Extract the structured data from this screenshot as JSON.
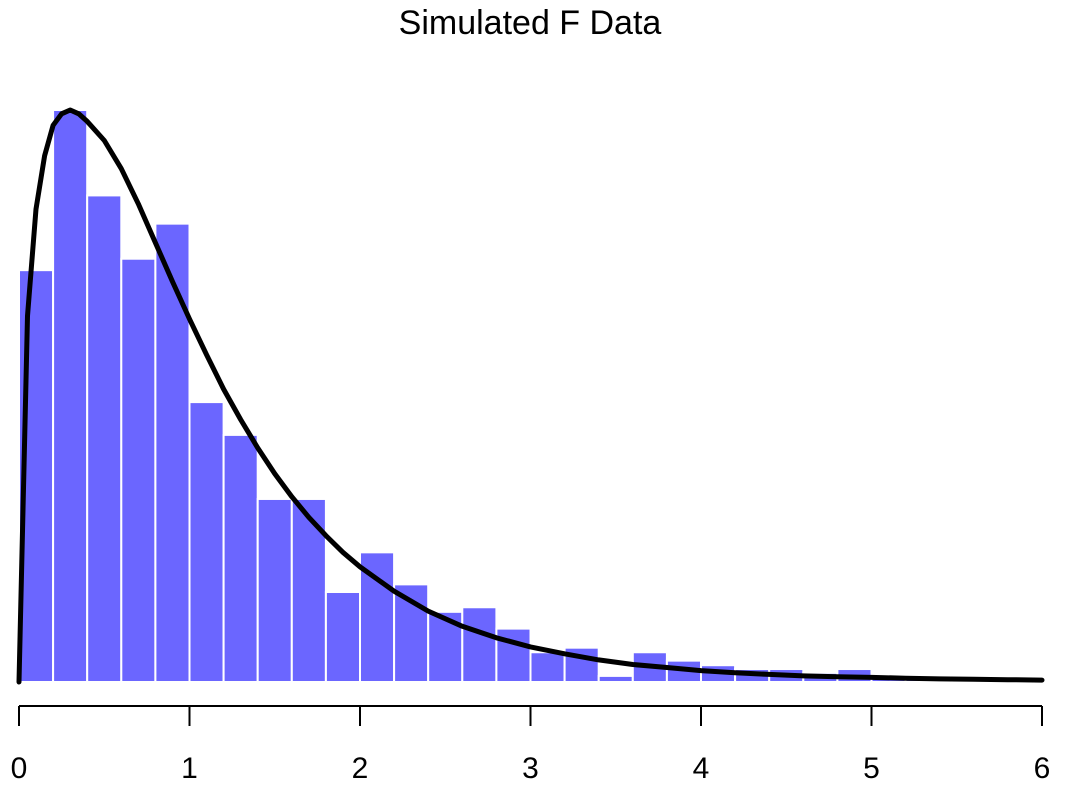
{
  "chart_data": {
    "type": "bar",
    "subtype": "histogram-with-density",
    "title": "Simulated F Data",
    "xlabel": "",
    "ylabel": "",
    "xlim": [
      0,
      6.2
    ],
    "ylim": [
      0,
      0.75
    ],
    "bin_width": 0.2,
    "x_ticks": [
      0,
      1,
      2,
      3,
      4,
      5,
      6
    ],
    "x_tick_labels": [
      "0",
      "1",
      "2",
      "3",
      "4",
      "5",
      "6"
    ],
    "y_axis_shown": false,
    "grid": false,
    "bins": [
      {
        "x0": 0.0,
        "x1": 0.2,
        "density": 0.54
      },
      {
        "x0": 0.2,
        "x1": 0.4,
        "density": 0.75
      },
      {
        "x0": 0.4,
        "x1": 0.6,
        "density": 0.638
      },
      {
        "x0": 0.6,
        "x1": 0.8,
        "density": 0.555
      },
      {
        "x0": 0.8,
        "x1": 1.0,
        "density": 0.601
      },
      {
        "x0": 1.0,
        "x1": 1.2,
        "density": 0.367
      },
      {
        "x0": 1.2,
        "x1": 1.4,
        "density": 0.324
      },
      {
        "x0": 1.4,
        "x1": 1.6,
        "density": 0.24
      },
      {
        "x0": 1.6,
        "x1": 1.8,
        "density": 0.24
      },
      {
        "x0": 1.8,
        "x1": 2.0,
        "density": 0.118
      },
      {
        "x0": 2.0,
        "x1": 2.2,
        "density": 0.17
      },
      {
        "x0": 2.2,
        "x1": 2.4,
        "density": 0.128
      },
      {
        "x0": 2.4,
        "x1": 2.6,
        "density": 0.092
      },
      {
        "x0": 2.6,
        "x1": 2.8,
        "density": 0.098
      },
      {
        "x0": 2.8,
        "x1": 3.0,
        "density": 0.07
      },
      {
        "x0": 3.0,
        "x1": 3.2,
        "density": 0.039
      },
      {
        "x0": 3.2,
        "x1": 3.4,
        "density": 0.045
      },
      {
        "x0": 3.4,
        "x1": 3.6,
        "density": 0.008
      },
      {
        "x0": 3.6,
        "x1": 3.8,
        "density": 0.039
      },
      {
        "x0": 3.8,
        "x1": 4.0,
        "density": 0.028
      },
      {
        "x0": 4.0,
        "x1": 4.2,
        "density": 0.022
      },
      {
        "x0": 4.2,
        "x1": 4.4,
        "density": 0.017
      },
      {
        "x0": 4.4,
        "x1": 4.6,
        "density": 0.017
      },
      {
        "x0": 4.6,
        "x1": 4.8,
        "density": 0.012
      },
      {
        "x0": 4.8,
        "x1": 5.0,
        "density": 0.017
      },
      {
        "x0": 5.0,
        "x1": 5.2,
        "density": 0.006
      },
      {
        "x0": 5.2,
        "x1": 5.4,
        "density": 0.004
      },
      {
        "x0": 5.4,
        "x1": 5.6,
        "density": 0.003
      },
      {
        "x0": 5.6,
        "x1": 5.8,
        "density": 0.002
      },
      {
        "x0": 5.8,
        "x1": 6.0,
        "density": 0.002
      },
      {
        "x0": 6.0,
        "x1": 6.2,
        "density": 0.002
      }
    ],
    "density_curve": {
      "name": "F density",
      "points": [
        [
          0.0,
          0.0
        ],
        [
          0.05,
          0.48
        ],
        [
          0.1,
          0.62
        ],
        [
          0.15,
          0.69
        ],
        [
          0.2,
          0.73
        ],
        [
          0.25,
          0.745
        ],
        [
          0.3,
          0.75
        ],
        [
          0.35,
          0.745
        ],
        [
          0.4,
          0.735
        ],
        [
          0.5,
          0.71
        ],
        [
          0.6,
          0.673
        ],
        [
          0.7,
          0.627
        ],
        [
          0.8,
          0.576
        ],
        [
          0.9,
          0.525
        ],
        [
          1.0,
          0.476
        ],
        [
          1.1,
          0.429
        ],
        [
          1.2,
          0.384
        ],
        [
          1.3,
          0.344
        ],
        [
          1.4,
          0.307
        ],
        [
          1.5,
          0.273
        ],
        [
          1.6,
          0.243
        ],
        [
          1.7,
          0.216
        ],
        [
          1.8,
          0.192
        ],
        [
          1.9,
          0.17
        ],
        [
          2.0,
          0.151
        ],
        [
          2.2,
          0.119
        ],
        [
          2.4,
          0.093
        ],
        [
          2.6,
          0.073
        ],
        [
          2.8,
          0.058
        ],
        [
          3.0,
          0.046
        ],
        [
          3.2,
          0.037
        ],
        [
          3.4,
          0.029
        ],
        [
          3.6,
          0.023
        ],
        [
          3.8,
          0.019
        ],
        [
          4.0,
          0.015
        ],
        [
          4.2,
          0.012
        ],
        [
          4.4,
          0.01
        ],
        [
          4.6,
          0.008
        ],
        [
          4.8,
          0.007
        ],
        [
          5.0,
          0.006
        ],
        [
          5.2,
          0.005
        ],
        [
          5.4,
          0.004
        ],
        [
          5.6,
          0.0035
        ],
        [
          5.8,
          0.003
        ],
        [
          6.0,
          0.0025
        ]
      ]
    },
    "colors": {
      "bar_fill": "#6b66ff",
      "bar_border": "#ffffff",
      "curve": "#000000",
      "axis": "#000000",
      "text": "#000000"
    }
  }
}
